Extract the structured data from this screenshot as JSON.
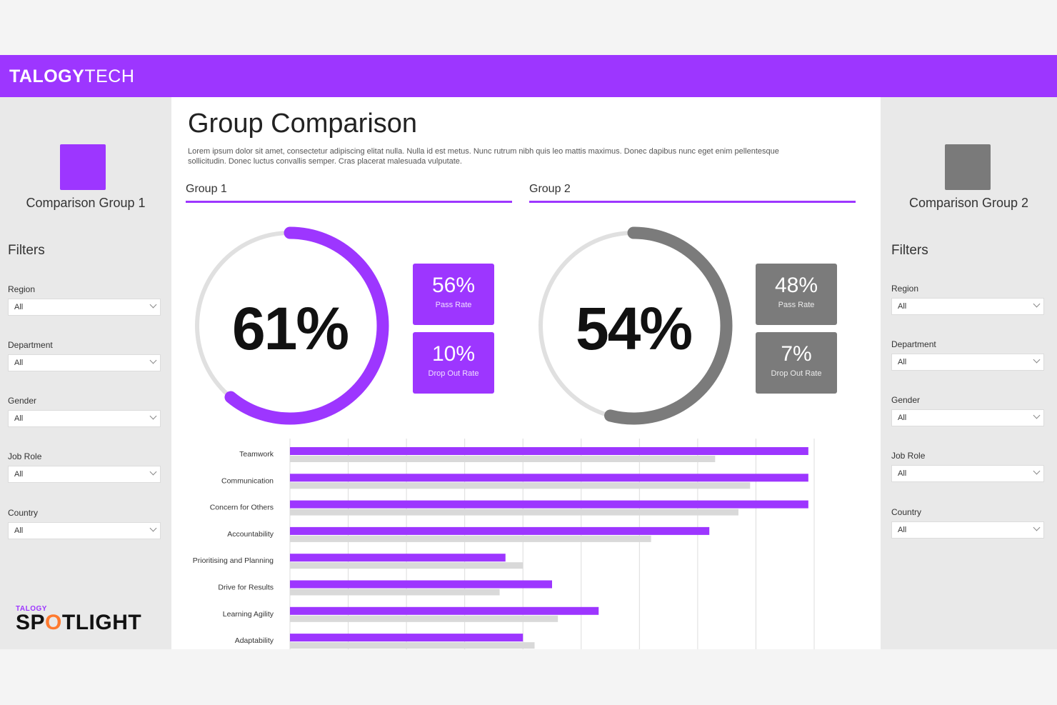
{
  "header": {
    "brand_bold": "TALOGY",
    "brand_light": "TECH"
  },
  "colors": {
    "accent": "#9d36ff",
    "group2": "#7b7b7b",
    "bar_secondary": "#d9d9d9"
  },
  "left_panel": {
    "group_name": "Comparison Group 1",
    "filters_title": "Filters",
    "filters": [
      {
        "label": "Region",
        "value": "All"
      },
      {
        "label": "Department",
        "value": "All"
      },
      {
        "label": "Gender",
        "value": "All"
      },
      {
        "label": "Job Role",
        "value": "All"
      },
      {
        "label": "Country",
        "value": "All"
      }
    ],
    "logo_small": "TALOGY",
    "logo_big_pre": "SP",
    "logo_big_o": "O",
    "logo_big_post": "TLIGHT"
  },
  "right_panel": {
    "group_name": "Comparison Group 2",
    "filters_title": "Filters",
    "filters": [
      {
        "label": "Region",
        "value": "All"
      },
      {
        "label": "Department",
        "value": "All"
      },
      {
        "label": "Gender",
        "value": "All"
      },
      {
        "label": "Job Role",
        "value": "All"
      },
      {
        "label": "Country",
        "value": "All"
      }
    ]
  },
  "main": {
    "title": "Group Comparison",
    "description": "Lorem ipsum dolor sit amet, consectetur adipiscing elitat nulla. Nulla id est metus. Nunc rutrum nibh quis leo mattis maximus. Donec dapibus nunc eget enim pellentesque sollicitudin. Donec luctus convallis semper. Cras placerat malesuada vulputate.",
    "tabs": [
      "Group 1",
      "Group 2"
    ],
    "group1": {
      "gauge_value": "61%",
      "gauge_fraction": 0.61,
      "stats": [
        {
          "value": "56%",
          "label": "Pass Rate"
        },
        {
          "value": "10%",
          "label": "Drop Out Rate"
        }
      ]
    },
    "group2": {
      "gauge_value": "54%",
      "gauge_fraction": 0.54,
      "stats": [
        {
          "value": "48%",
          "label": "Pass Rate"
        },
        {
          "value": "7%",
          "label": "Drop Out Rate"
        }
      ]
    }
  },
  "chart_data": {
    "type": "bar",
    "orientation": "horizontal",
    "categories": [
      "Teamwork",
      "Communication",
      "Concern for Others",
      "Accountability",
      "Prioritising and Planning",
      "Drive for Results",
      "Learning Agility",
      "Adaptability"
    ],
    "series": [
      {
        "values": [
          8.9,
          8.9,
          8.9,
          7.2,
          3.7,
          4.5,
          5.3,
          4.0
        ]
      },
      {
        "values": [
          7.3,
          7.9,
          7.7,
          6.2,
          4.0,
          3.6,
          4.6,
          4.2
        ]
      }
    ],
    "xlim": [
      0,
      9
    ],
    "grid": true
  }
}
